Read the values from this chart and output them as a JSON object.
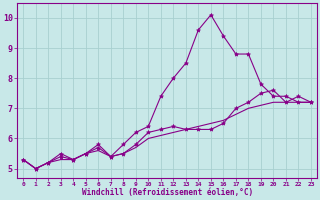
{
  "background_color": "#c8e8e8",
  "grid_color": "#a8d0d0",
  "line_color": "#880088",
  "marker_color": "#880088",
  "xlabel": "Windchill (Refroidissement éolien,°C)",
  "xlim": [
    -0.5,
    23.5
  ],
  "ylim": [
    4.7,
    10.5
  ],
  "yticks": [
    5,
    6,
    7,
    8,
    9,
    10
  ],
  "xticks": [
    0,
    1,
    2,
    3,
    4,
    5,
    6,
    7,
    8,
    9,
    10,
    11,
    12,
    13,
    14,
    15,
    16,
    17,
    18,
    19,
    20,
    21,
    22,
    23
  ],
  "series": [
    {
      "x": [
        0,
        1,
        2,
        3,
        4,
        5,
        6,
        7,
        8,
        9,
        10,
        11,
        12,
        13,
        14,
        15,
        16,
        17,
        18,
        19,
        20,
        21,
        22,
        23
      ],
      "y": [
        5.3,
        5.0,
        5.2,
        5.5,
        5.3,
        5.5,
        5.8,
        5.4,
        5.8,
        6.2,
        6.4,
        7.4,
        8.0,
        8.5,
        9.6,
        10.1,
        9.4,
        8.8,
        8.8,
        7.8,
        7.4,
        7.4,
        7.2,
        7.2
      ],
      "has_markers": true
    },
    {
      "x": [
        0,
        1,
        2,
        3,
        4,
        5,
        6,
        7,
        8,
        9,
        10,
        11,
        12,
        13,
        14,
        15,
        16,
        17,
        18,
        19,
        20,
        21,
        22,
        23
      ],
      "y": [
        5.3,
        5.0,
        5.2,
        5.4,
        5.3,
        5.5,
        5.7,
        5.4,
        5.5,
        5.8,
        6.2,
        6.3,
        6.4,
        6.3,
        6.3,
        6.3,
        6.5,
        7.0,
        7.2,
        7.5,
        7.6,
        7.2,
        7.4,
        7.2
      ],
      "has_markers": true
    },
    {
      "x": [
        0,
        1,
        2,
        3,
        4,
        5,
        6,
        7,
        8,
        9,
        10,
        11,
        12,
        13,
        14,
        15,
        16,
        17,
        18,
        19,
        20,
        21,
        22,
        23
      ],
      "y": [
        5.3,
        5.0,
        5.2,
        5.3,
        5.3,
        5.5,
        5.6,
        5.4,
        5.5,
        5.7,
        6.0,
        6.1,
        6.2,
        6.3,
        6.4,
        6.5,
        6.6,
        6.8,
        7.0,
        7.1,
        7.2,
        7.2,
        7.2,
        7.2
      ],
      "has_markers": false
    }
  ]
}
